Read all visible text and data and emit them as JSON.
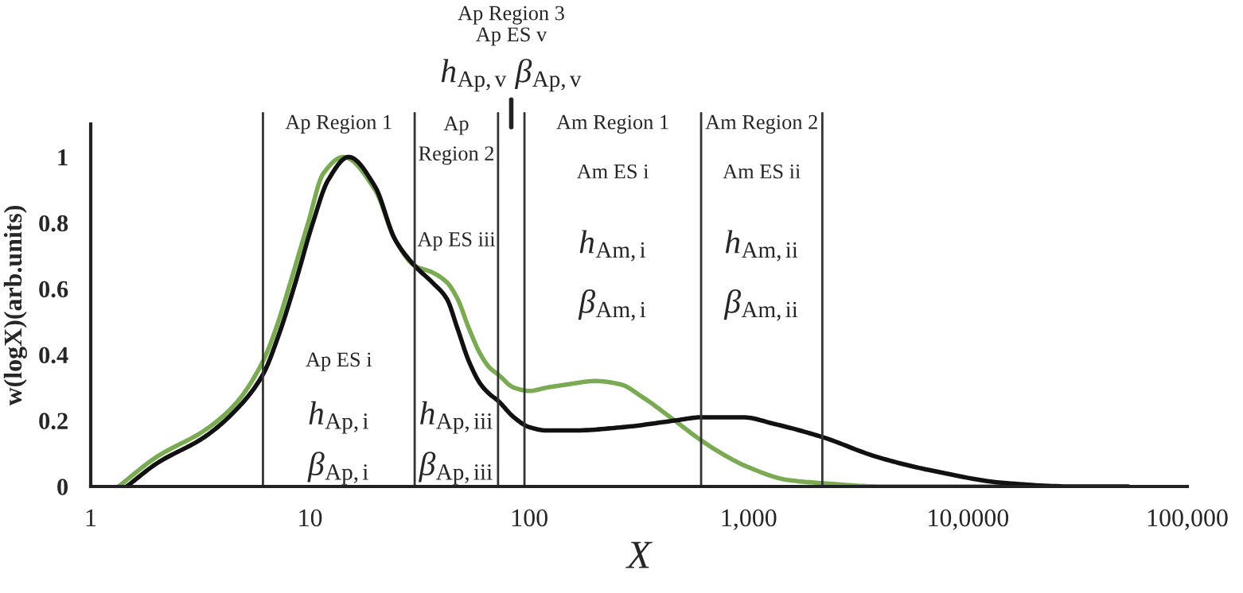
{
  "chart_data": {
    "type": "line",
    "xlabel": "X",
    "ylabel": "w(logX)(arb.units)",
    "log": "x",
    "xlim": [
      1,
      100000
    ],
    "xticks": [
      1,
      10,
      100,
      {
        "value": 1000,
        "label": "1,000"
      },
      {
        "value": 10000,
        "label": "10,0000"
      },
      {
        "value": 100000,
        "label": "100,000"
      }
    ],
    "ylim": [
      0,
      1.1
    ],
    "yticks": [
      0,
      0.2,
      0.4,
      0.6,
      0.8,
      1
    ],
    "series": [
      {
        "color": "#7aaa52",
        "x": [
          1.34,
          2,
          3.3,
          4.56,
          6.1,
          7,
          8.06,
          9.8,
          11.5,
          14.2,
          19.8,
          24.4,
          30,
          36,
          42,
          47,
          53,
          60,
          66,
          72,
          85,
          100,
          120,
          150,
          200,
          260,
          330,
          460,
          607,
          800,
          985,
          1500,
          2167,
          4000,
          20000
        ],
        "values": [
          0,
          0.09,
          0.17,
          0.25,
          0.38,
          0.48,
          0.61,
          0.8,
          0.95,
          1.0,
          0.9,
          0.75,
          0.67,
          0.65,
          0.62,
          0.57,
          0.48,
          0.4,
          0.36,
          0.34,
          0.3,
          0.29,
          0.3,
          0.31,
          0.32,
          0.31,
          0.27,
          0.2,
          0.14,
          0.09,
          0.06,
          0.02,
          0.01,
          0,
          0
        ]
      },
      {
        "color": "#111111",
        "x": [
          1.46,
          2,
          3.3,
          4.56,
          6.1,
          7.2,
          8.5,
          10.3,
          12.1,
          15,
          19.8,
          24.4,
          30,
          36,
          42,
          47,
          53,
          60,
          66,
          72,
          85,
          100,
          120,
          160,
          267,
          460,
          607,
          943,
          1306,
          2167,
          3830,
          6650,
          15000,
          30000,
          53800
        ],
        "values": [
          0,
          0.07,
          0.15,
          0.23,
          0.34,
          0.46,
          0.61,
          0.8,
          0.93,
          1.0,
          0.91,
          0.75,
          0.67,
          0.62,
          0.57,
          0.48,
          0.38,
          0.31,
          0.28,
          0.26,
          0.21,
          0.18,
          0.17,
          0.17,
          0.18,
          0.2,
          0.21,
          0.21,
          0.19,
          0.15,
          0.09,
          0.05,
          0.01,
          0,
          0
        ]
      }
    ],
    "ref_lines": [
      {
        "axis": "x",
        "value": 6.1,
        "color": "#333333"
      },
      {
        "axis": "x",
        "value": 30,
        "color": "#333333"
      },
      {
        "axis": "x",
        "value": 72,
        "color": "#333333"
      },
      {
        "axis": "x",
        "value": 95,
        "color": "#333333"
      },
      {
        "axis": "x",
        "value": 607,
        "color": "#333333"
      },
      {
        "axis": "x",
        "value": 2167,
        "color": "#333333"
      }
    ],
    "annotations": [
      "Ap Region 1",
      "Ap\nRegion 2",
      "Ap Region 3\nAp ES v",
      "h$_{Ap,v}$ β$_{Ap,v}$",
      "Am Region 1",
      "Am Region 2",
      "Ap ES iii",
      "Am ES i",
      "Am ES ii",
      "h$_{Am,i}$",
      "β$_{Am,i}$",
      "h$_{Am,ii}$",
      "β$_{Am,ii}$",
      "Ap ES i",
      "h$_{Ap,i}$",
      "β$_{Ap,i}$",
      "h$_{Ap,iii}$",
      "β$_{Ap,iii}$"
    ]
  }
}
